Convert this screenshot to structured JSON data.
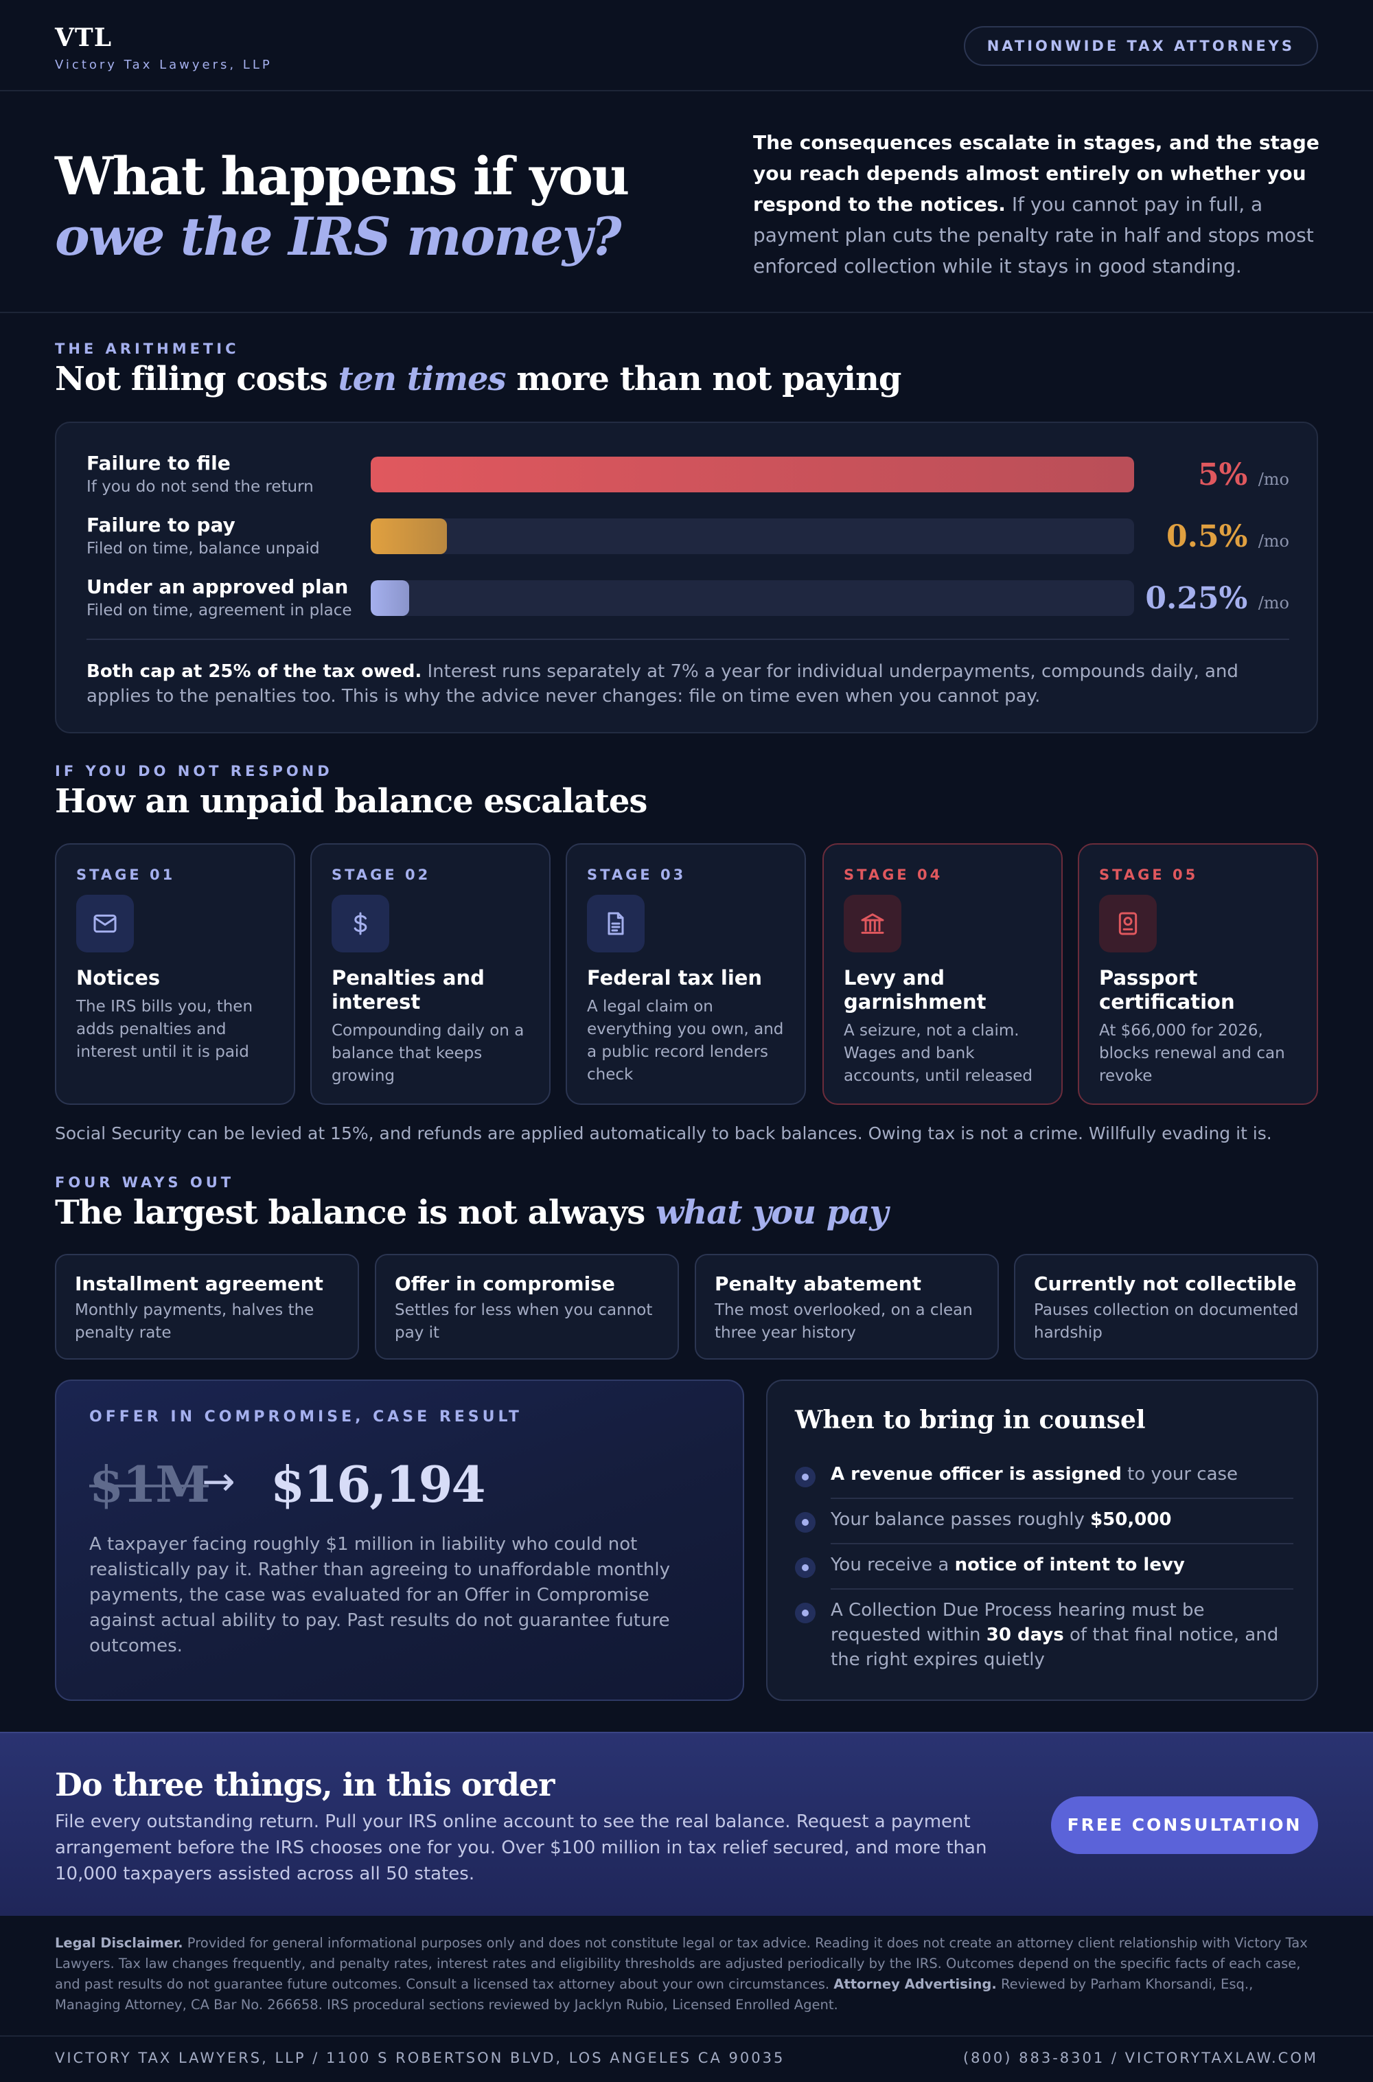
{
  "header": {
    "logo": "VTL",
    "firm_name": "Victory Tax Lawyers, LLP",
    "pill": "NATIONWIDE TAX ATTORNEYS"
  },
  "hero": {
    "title_line1": "What happens if you",
    "title_line2": "owe the IRS money?",
    "intro_bold": "The consequences escalate in stages, and the stage you reach depends almost entirely on whether you respond to the notices.",
    "intro_rest": " If you cannot pay in full, a payment plan cuts the penalty rate in half and stops most enforced collection while it stays in good standing."
  },
  "arithmetic": {
    "eyebrow": "THE ARITHMETIC",
    "title_pre": "Not filing costs ",
    "title_em": "ten times",
    "title_post": " more than not paying",
    "rows": [
      {
        "name": "Failure to file",
        "desc": "If you do not send the return",
        "value": "5%",
        "unit": "/mo",
        "fill": 1.0,
        "color": "#e0585e"
      },
      {
        "name": "Failure to pay",
        "desc": "Filed on time, balance unpaid",
        "value": "0.5%",
        "unit": "/mo",
        "fill": 0.1,
        "color": "#e0a040"
      },
      {
        "name": "Under an approved plan",
        "desc": "Filed on time, agreement in place",
        "value": "0.25%",
        "unit": "/mo",
        "fill": 0.05,
        "color": "#a5b0ee"
      }
    ],
    "note_bold": "Both cap at 25% of the tax owed.",
    "note_rest": " Interest runs separately at 7% a year for individual underpayments, compounds daily, and applies to the penalties too. This is why the advice never changes: file on time even when you cannot pay."
  },
  "escalation": {
    "eyebrow": "IF YOU DO NOT RESPOND",
    "title": "How an unpaid balance escalates",
    "stages": [
      {
        "num": "STAGE 01",
        "icon": "mail-icon",
        "title": "Notices",
        "desc": "The IRS bills you, then adds penalties and interest until it is paid"
      },
      {
        "num": "STAGE 02",
        "icon": "dollar-icon",
        "title": "Penalties and interest",
        "desc": "Compounding daily on a balance that keeps growing"
      },
      {
        "num": "STAGE 03",
        "icon": "document-icon",
        "title": "Federal tax lien",
        "desc": "A legal claim on everything you own, and a public record lenders check"
      },
      {
        "num": "STAGE 04",
        "icon": "bank-icon",
        "title": "Levy and garnishment",
        "desc": "A seizure, not a claim. Wages and bank accounts, until released"
      },
      {
        "num": "STAGE 05",
        "icon": "passport-icon",
        "title": "Passport certification",
        "desc": "At $66,000 for 2026, blocks renewal and can revoke"
      }
    ],
    "note": "Social Security can be levied at 15%, and refunds are applied automatically to back balances. Owing tax is not a crime. Willfully evading it is."
  },
  "ways": {
    "eyebrow": "FOUR WAYS OUT",
    "title_pre": "The largest balance is not always ",
    "title_em": "what you pay",
    "options": [
      {
        "title": "Installment agreement",
        "desc": "Monthly payments, halves the penalty rate"
      },
      {
        "title": "Offer in compromise",
        "desc": "Settles for less when you cannot pay it"
      },
      {
        "title": "Penalty abatement",
        "desc": "The most overlooked, on a clean three year history"
      },
      {
        "title": "Currently not collectible",
        "desc": "Pauses collection on documented hardship"
      }
    ]
  },
  "case": {
    "eyebrow": "OFFER IN COMPROMISE, CASE RESULT",
    "from": "$1M",
    "arrow": "→",
    "to": "$16,194",
    "desc": "A taxpayer facing roughly $1 million in liability who could not realistically pay it. Rather than agreeing to unaffordable monthly payments, the case was evaluated for an Offer in Compromise against actual ability to pay. Past results do not guarantee future outcomes."
  },
  "counsel": {
    "title": "When to bring in counsel",
    "items": [
      {
        "bold_a": "A revenue officer is assigned",
        "text_a": " to your case",
        "bold_b": "",
        "text_b": ""
      },
      {
        "text_a": "Your balance passes roughly ",
        "bold_a": "$50,000",
        "bold_b": "",
        "text_b": ""
      },
      {
        "text_a": "You receive a ",
        "bold_a": "notice of intent to levy",
        "bold_b": "",
        "text_b": ""
      },
      {
        "text_a": "A Collection Due Process hearing must be requested within ",
        "bold_a": "30 days",
        "text_b": " of that final notice, and the right expires quietly"
      }
    ]
  },
  "cta": {
    "title": "Do three things, in this order",
    "text": "File every outstanding return. Pull your IRS online account to see the real balance. Request a payment arrangement before the IRS chooses one for you. Over $100 million in tax relief secured, and more than 10,000 taxpayers assisted across all 50 states.",
    "button": "FREE CONSULTATION"
  },
  "disclaimer": {
    "label1": "Legal Disclaimer.",
    "text1": " Provided for general informational purposes only and does not constitute legal or tax advice. Reading it does not create an attorney client relationship with Victory Tax Lawyers. Tax law changes frequently, and penalty rates, interest rates and eligibility thresholds are adjusted periodically by the IRS. Outcomes depend on the specific facts of each case, and past results do not guarantee future outcomes. Consult a licensed tax attorney about your own circumstances. ",
    "label2": "Attorney Advertising.",
    "text2": " Reviewed by Parham Khorsandi, Esq., Managing Attorney, CA Bar No. 266658. IRS procedural sections reviewed by Jacklyn Rubio, Licensed Enrolled Agent."
  },
  "footer": {
    "left": "VICTORY TAX LAWYERS, LLP / 1100 S ROBERTSON BLVD, LOS ANGELES CA 90035",
    "right": "(800) 883-8301 / VICTORYTAXLAW.COM"
  }
}
